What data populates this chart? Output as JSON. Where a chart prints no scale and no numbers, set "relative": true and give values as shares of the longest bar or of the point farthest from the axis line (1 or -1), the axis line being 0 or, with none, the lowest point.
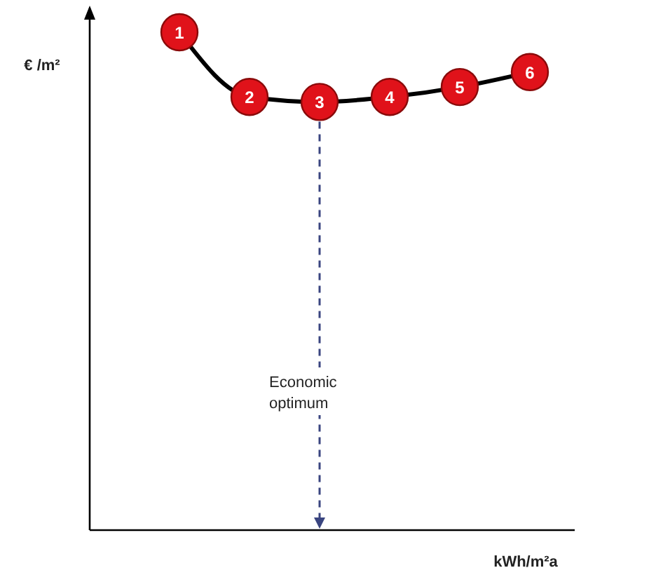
{
  "chart_data": {
    "type": "line",
    "relative": true,
    "xlabel": "kWh/m²a",
    "ylabel": "€ /m²",
    "categories": [
      null,
      null,
      null,
      null,
      null,
      null
    ],
    "series": [
      {
        "color": "#000000",
        "values": [
          1,
          0.87,
          0.86,
          0.87,
          0.89,
          0.92
        ]
      }
    ],
    "marker": "circle",
    "annotations": [
      {
        "text": "1",
        "y": 1
      },
      {
        "text": "2",
        "y": 0.87
      },
      {
        "text": "3",
        "y": 0.86
      },
      {
        "text": "4",
        "y": 0.87
      },
      {
        "text": "5",
        "y": 0.89
      },
      {
        "text": "6",
        "y": 0.92
      },
      "Economic optimum"
    ]
  }
}
